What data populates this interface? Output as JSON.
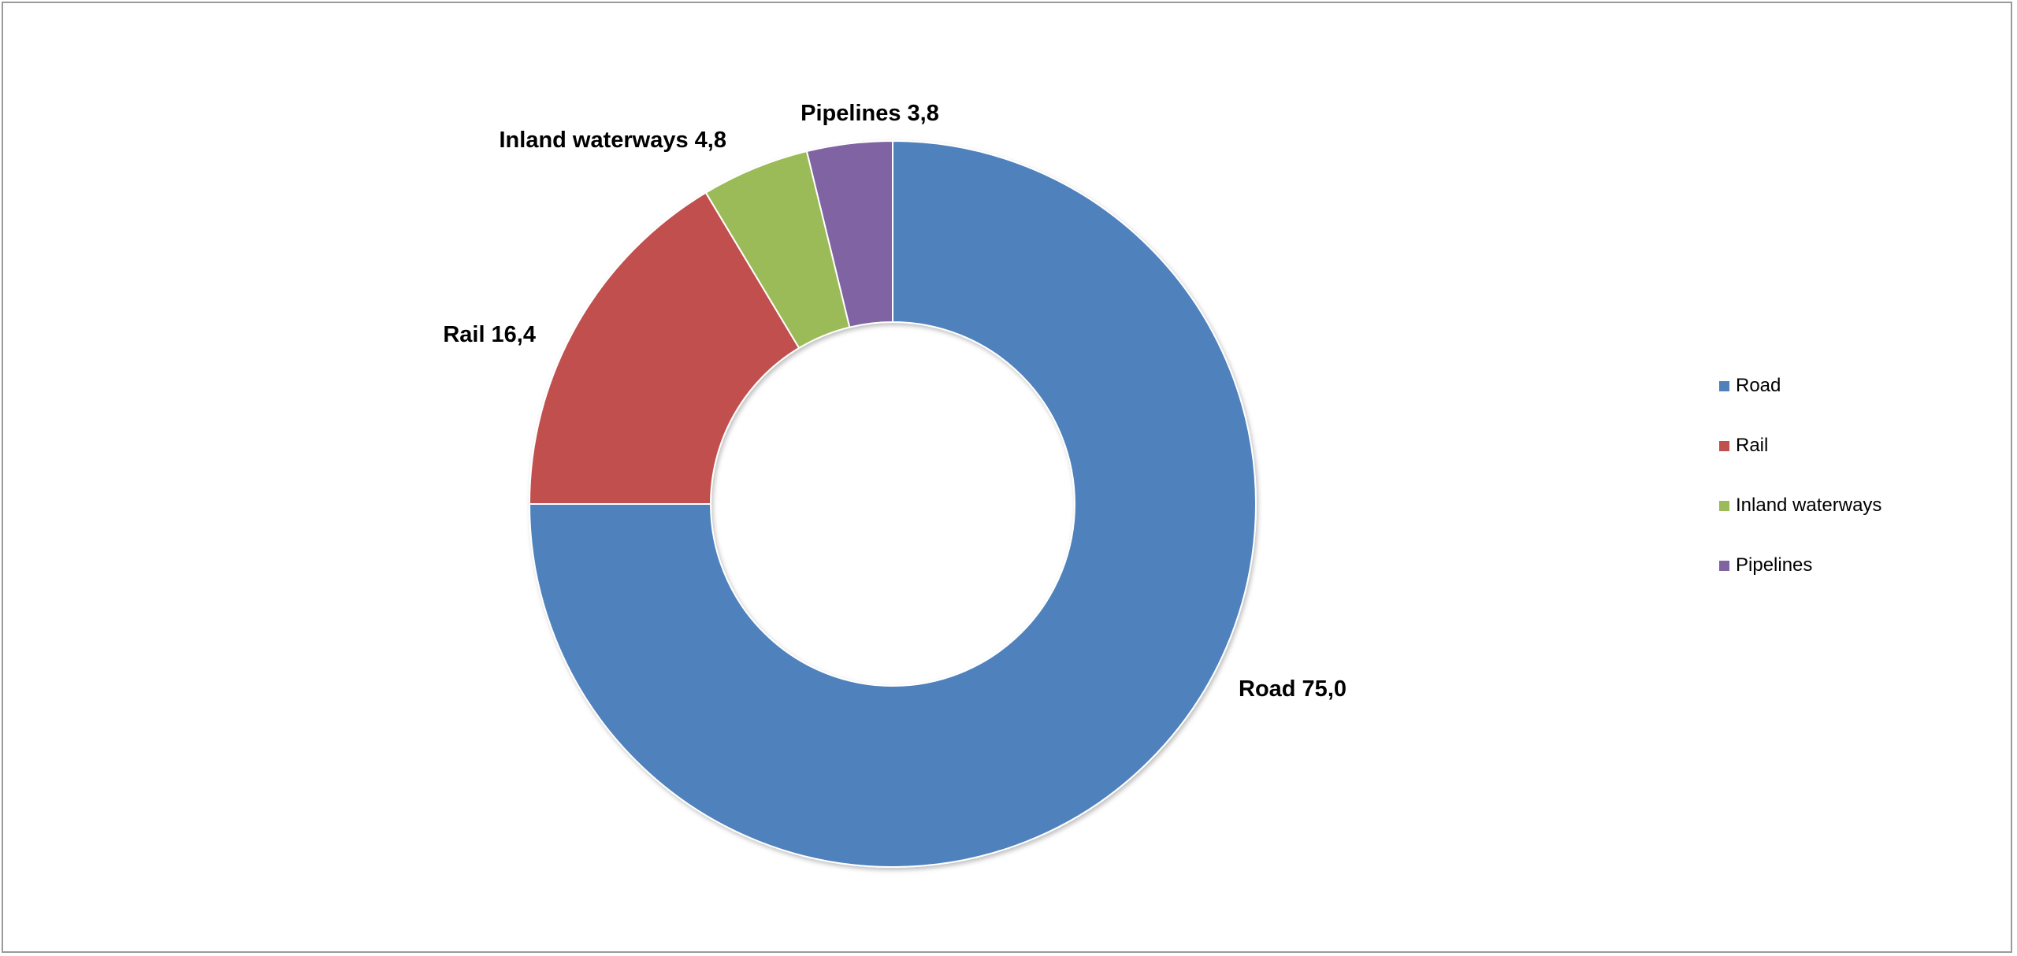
{
  "chart_data": {
    "type": "pie",
    "variant": "donut",
    "title": "",
    "categories": [
      "Road",
      "Rail",
      "Inland waterways",
      "Pipelines"
    ],
    "values": [
      75.0,
      16.4,
      4.8,
      3.8
    ],
    "value_labels": [
      "Road 75,0",
      "Rail 16,4",
      "Inland waterways 4,8",
      "Pipelines 3,8"
    ],
    "colors": [
      "#4F81BD",
      "#C0504D",
      "#9BBB59",
      "#8064A2"
    ],
    "start_angle": "12 o'clock",
    "direction": "clockwise",
    "legend_position": "right",
    "legend": {
      "items": [
        {
          "label": "Road",
          "color": "#4F81BD"
        },
        {
          "label": "Rail",
          "color": "#C0504D"
        },
        {
          "label": "Inland waterways",
          "color": "#9BBB59"
        },
        {
          "label": "Pipelines",
          "color": "#8064A2"
        }
      ]
    }
  }
}
